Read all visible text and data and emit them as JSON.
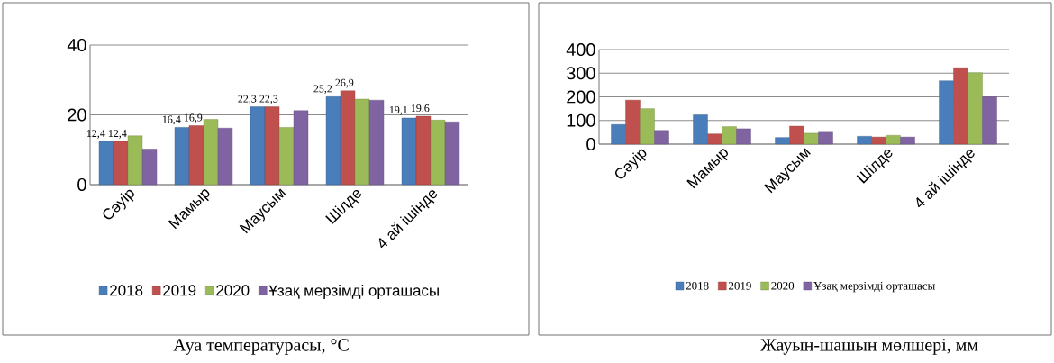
{
  "chart_data": [
    {
      "type": "bar",
      "title": "Ауа температурасы, °C",
      "categories": [
        "Сәуір",
        "Мамыр",
        "Маусым",
        "Шілде",
        "4 ай ішінде"
      ],
      "ylim": [
        0,
        40
      ],
      "yticks": [
        0,
        20,
        40
      ],
      "grid": "y",
      "legend": "bottom",
      "series": [
        {
          "name": "2018",
          "color": "#4a7ebb",
          "values": [
            12.4,
            16.4,
            22.3,
            25.2,
            19.1
          ],
          "value_labels": [
            "12,4",
            "16,4",
            "22,3",
            "25,2",
            "19,1"
          ]
        },
        {
          "name": "2019",
          "color": "#c0504d",
          "values": [
            12.4,
            16.9,
            22.3,
            26.9,
            19.6
          ],
          "value_labels": [
            "12,4",
            "16,9",
            "22,3",
            "26,9",
            "19,6"
          ]
        },
        {
          "name": "2020",
          "color": "#9bbb59",
          "values": [
            14.0,
            18.7,
            16.4,
            24.5,
            18.5
          ]
        },
        {
          "name": "Ұзақ мерзімді орташасы",
          "color": "#8064a2",
          "values": [
            10.2,
            16.2,
            21.2,
            24.2,
            18.0
          ]
        }
      ]
    },
    {
      "type": "bar",
      "title": "Жауын-шашын мөлшері, мм",
      "categories": [
        "Сәуір",
        "Мамыр",
        "Маусым",
        "Шілде",
        "4 ай ішінде"
      ],
      "ylim": [
        0,
        400
      ],
      "yticks": [
        0,
        100,
        200,
        300,
        400
      ],
      "grid": "y",
      "legend": "bottom",
      "series": [
        {
          "name": "2018",
          "color": "#4a7ebb",
          "values": [
            83,
            124,
            28,
            33,
            268
          ]
        },
        {
          "name": "2019",
          "color": "#c0504d",
          "values": [
            186,
            43,
            76,
            30,
            323
          ]
        },
        {
          "name": "2020",
          "color": "#9bbb59",
          "values": [
            150,
            74,
            46,
            37,
            302
          ]
        },
        {
          "name": "Ұзақ мерзімді орташасы",
          "color": "#8064a2",
          "values": [
            58,
            65,
            54,
            30,
            200
          ]
        }
      ]
    }
  ]
}
